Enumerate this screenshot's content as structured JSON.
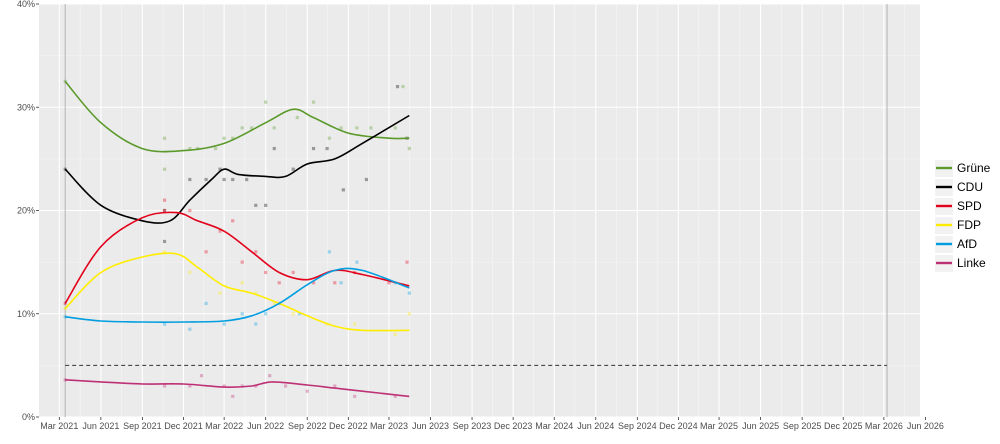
{
  "chart_data": {
    "type": "line",
    "title": "",
    "xlabel": "",
    "ylabel": "",
    "ylim": [
      0,
      40
    ],
    "xlim": [
      "2021-01-15",
      "2026-05-20"
    ],
    "y_ticks": [
      0,
      10,
      20,
      30,
      40
    ],
    "y_tick_labels": [
      "0%",
      "10%",
      "20%",
      "30%",
      "40%"
    ],
    "x_ticks": [
      "2021-03-01",
      "2021-06-01",
      "2021-09-01",
      "2021-12-01",
      "2022-03-01",
      "2022-06-01",
      "2022-09-01",
      "2022-12-01",
      "2023-03-01",
      "2023-06-01",
      "2023-09-01",
      "2023-12-01",
      "2024-03-01",
      "2024-06-01",
      "2024-09-01",
      "2024-12-01",
      "2025-03-01",
      "2025-06-01",
      "2025-09-01",
      "2025-12-01",
      "2026-03-01",
      "2026-06-01"
    ],
    "x_tick_labels": [
      "Mar 2021",
      "Jun 2021",
      "Sep 2021",
      "Dec 2021",
      "Mar 2022",
      "Jun 2022",
      "Sep 2022",
      "Dec 2022",
      "Mar 2023",
      "Jun 2023",
      "Sep 2023",
      "Dec 2023",
      "Mar 2024",
      "Jun 2024",
      "Sep 2024",
      "Dec 2024",
      "Mar 2025",
      "Jun 2025",
      "Sep 2025",
      "Dec 2025",
      "Mar 2026",
      "Jun 2026"
    ],
    "grid": true,
    "legend_position": "right",
    "vlines": [
      "2021-03-14",
      "2026-03-08"
    ],
    "threshold": 5,
    "series": [
      {
        "name": "Grüne",
        "color": "#5a9a2a",
        "x": [
          "2021-03-14",
          "2021-06-01",
          "2021-09-01",
          "2021-12-01",
          "2022-03-01",
          "2022-06-01",
          "2022-08-01",
          "2022-09-15",
          "2022-12-01",
          "2023-03-01",
          "2023-04-15"
        ],
        "values": [
          32.5,
          28.5,
          26,
          25.8,
          26.5,
          28.5,
          29.8,
          29,
          27.5,
          27,
          27
        ],
        "points_x": [
          "2021-03-14",
          "2021-10-20",
          "2021-10-20",
          "2021-12-15",
          "2022-01-01",
          "2022-02-10",
          "2022-03-01",
          "2022-03-20",
          "2022-04-10",
          "2022-05-01",
          "2022-06-01",
          "2022-06-20",
          "2022-08-10",
          "2022-09-15",
          "2022-10-20",
          "2022-11-15",
          "2022-12-20",
          "2023-01-20",
          "2023-03-15",
          "2023-04-01",
          "2023-04-15"
        ],
        "points_y": [
          32.5,
          27,
          24,
          26,
          26,
          26,
          27,
          27,
          28,
          28,
          30.5,
          28,
          29,
          30.5,
          27,
          28,
          28,
          28,
          28,
          32,
          26
        ]
      },
      {
        "name": "CDU",
        "color": "#000000",
        "x": [
          "2021-03-14",
          "2021-06-01",
          "2021-09-01",
          "2021-11-01",
          "2021-12-15",
          "2022-02-01",
          "2022-03-01",
          "2022-04-01",
          "2022-06-01",
          "2022-07-15",
          "2022-09-01",
          "2022-11-01",
          "2023-01-01",
          "2023-04-15"
        ],
        "values": [
          24,
          20.5,
          19,
          19,
          21,
          23,
          24,
          23.5,
          23.3,
          23.3,
          24.5,
          25,
          26.5,
          29.2
        ],
        "points_x": [
          "2021-03-14",
          "2021-10-20",
          "2021-10-20",
          "2021-12-15",
          "2022-01-20",
          "2022-02-20",
          "2022-03-01",
          "2022-03-20",
          "2022-04-20",
          "2022-05-10",
          "2022-06-01",
          "2022-06-20",
          "2022-08-01",
          "2022-09-15",
          "2022-10-15",
          "2022-11-20",
          "2023-01-10",
          "2023-03-20",
          "2023-04-10"
        ],
        "points_y": [
          24,
          17,
          20,
          23,
          23,
          24,
          23,
          23,
          23,
          20.5,
          20.5,
          26,
          24,
          26,
          26,
          22,
          23,
          32,
          27
        ]
      },
      {
        "name": "SPD",
        "color": "#e3001b",
        "x": [
          "2021-03-14",
          "2021-06-01",
          "2021-09-01",
          "2021-11-15",
          "2022-01-01",
          "2022-03-01",
          "2022-05-01",
          "2022-07-01",
          "2022-09-01",
          "2022-11-01",
          "2023-01-01",
          "2023-04-15"
        ],
        "values": [
          11,
          16.5,
          19.3,
          19.8,
          19,
          18,
          16,
          14,
          13.3,
          14.2,
          13.8,
          12.7
        ],
        "points_x": [
          "2021-03-14",
          "2021-10-20",
          "2021-10-20",
          "2021-12-15",
          "2022-01-20",
          "2022-02-20",
          "2022-03-20",
          "2022-04-10",
          "2022-05-10",
          "2022-06-01",
          "2022-07-01",
          "2022-08-01",
          "2022-09-15",
          "2022-11-01",
          "2022-12-15",
          "2023-03-01",
          "2023-04-10"
        ],
        "points_y": [
          11,
          21,
          20,
          20,
          16,
          18,
          19,
          15,
          16,
          14,
          13,
          14,
          13,
          13,
          14,
          13,
          15
        ]
      },
      {
        "name": "FDP",
        "color": "#ffed00",
        "x": [
          "2021-03-14",
          "2021-06-01",
          "2021-09-01",
          "2021-11-15",
          "2022-01-01",
          "2022-03-01",
          "2022-05-01",
          "2022-07-01",
          "2022-09-01",
          "2022-11-01",
          "2023-01-01",
          "2023-04-15"
        ],
        "values": [
          10.5,
          14,
          15.5,
          15.8,
          14.5,
          12.7,
          12,
          11,
          9.8,
          8.8,
          8.4,
          8.4
        ],
        "points_x": [
          "2021-03-14",
          "2021-10-20",
          "2021-12-15",
          "2022-02-20",
          "2022-04-10",
          "2022-05-10",
          "2022-06-20",
          "2022-08-01",
          "2022-10-15",
          "2022-12-15",
          "2023-03-15",
          "2023-04-15"
        ],
        "points_y": [
          10.5,
          16,
          14,
          12,
          13,
          12,
          11,
          10,
          9,
          9,
          8,
          10
        ]
      },
      {
        "name": "AfD",
        "color": "#009ee0",
        "x": [
          "2021-03-14",
          "2021-06-01",
          "2021-09-01",
          "2021-12-01",
          "2022-03-01",
          "2022-05-01",
          "2022-07-01",
          "2022-09-01",
          "2022-11-01",
          "2023-01-01",
          "2023-04-15"
        ],
        "values": [
          9.7,
          9.3,
          9.2,
          9.2,
          9.3,
          9.8,
          11,
          12.8,
          14.2,
          14.2,
          12.5
        ],
        "points_x": [
          "2021-03-14",
          "2021-10-20",
          "2021-12-15",
          "2022-01-20",
          "2022-03-01",
          "2022-04-10",
          "2022-05-10",
          "2022-06-01",
          "2022-07-01",
          "2022-08-15",
          "2022-10-20",
          "2022-11-15",
          "2022-12-20",
          "2023-03-15",
          "2023-04-15"
        ],
        "points_y": [
          9.7,
          9,
          8.5,
          11,
          9,
          10,
          9,
          10,
          11,
          10,
          16,
          13,
          15,
          13,
          12
        ]
      },
      {
        "name": "Linke",
        "color": "#be3075",
        "x": [
          "2021-03-14",
          "2021-06-01",
          "2021-09-01",
          "2021-12-01",
          "2022-03-01",
          "2022-05-01",
          "2022-06-15",
          "2022-09-01",
          "2022-11-01",
          "2023-01-01",
          "2023-04-15"
        ],
        "values": [
          3.6,
          3.4,
          3.2,
          3.2,
          2.9,
          3,
          3.4,
          3.1,
          2.8,
          2.5,
          2
        ],
        "points_x": [
          "2021-03-14",
          "2021-10-20",
          "2021-12-15",
          "2022-01-10",
          "2022-03-01",
          "2022-03-20",
          "2022-04-10",
          "2022-05-10",
          "2022-06-10",
          "2022-07-15",
          "2022-09-01",
          "2022-11-01",
          "2022-12-15",
          "2023-03-15"
        ],
        "points_y": [
          3.6,
          3,
          3,
          4,
          3,
          2,
          3,
          3,
          4,
          3,
          2.5,
          3,
          2,
          2
        ]
      }
    ]
  }
}
